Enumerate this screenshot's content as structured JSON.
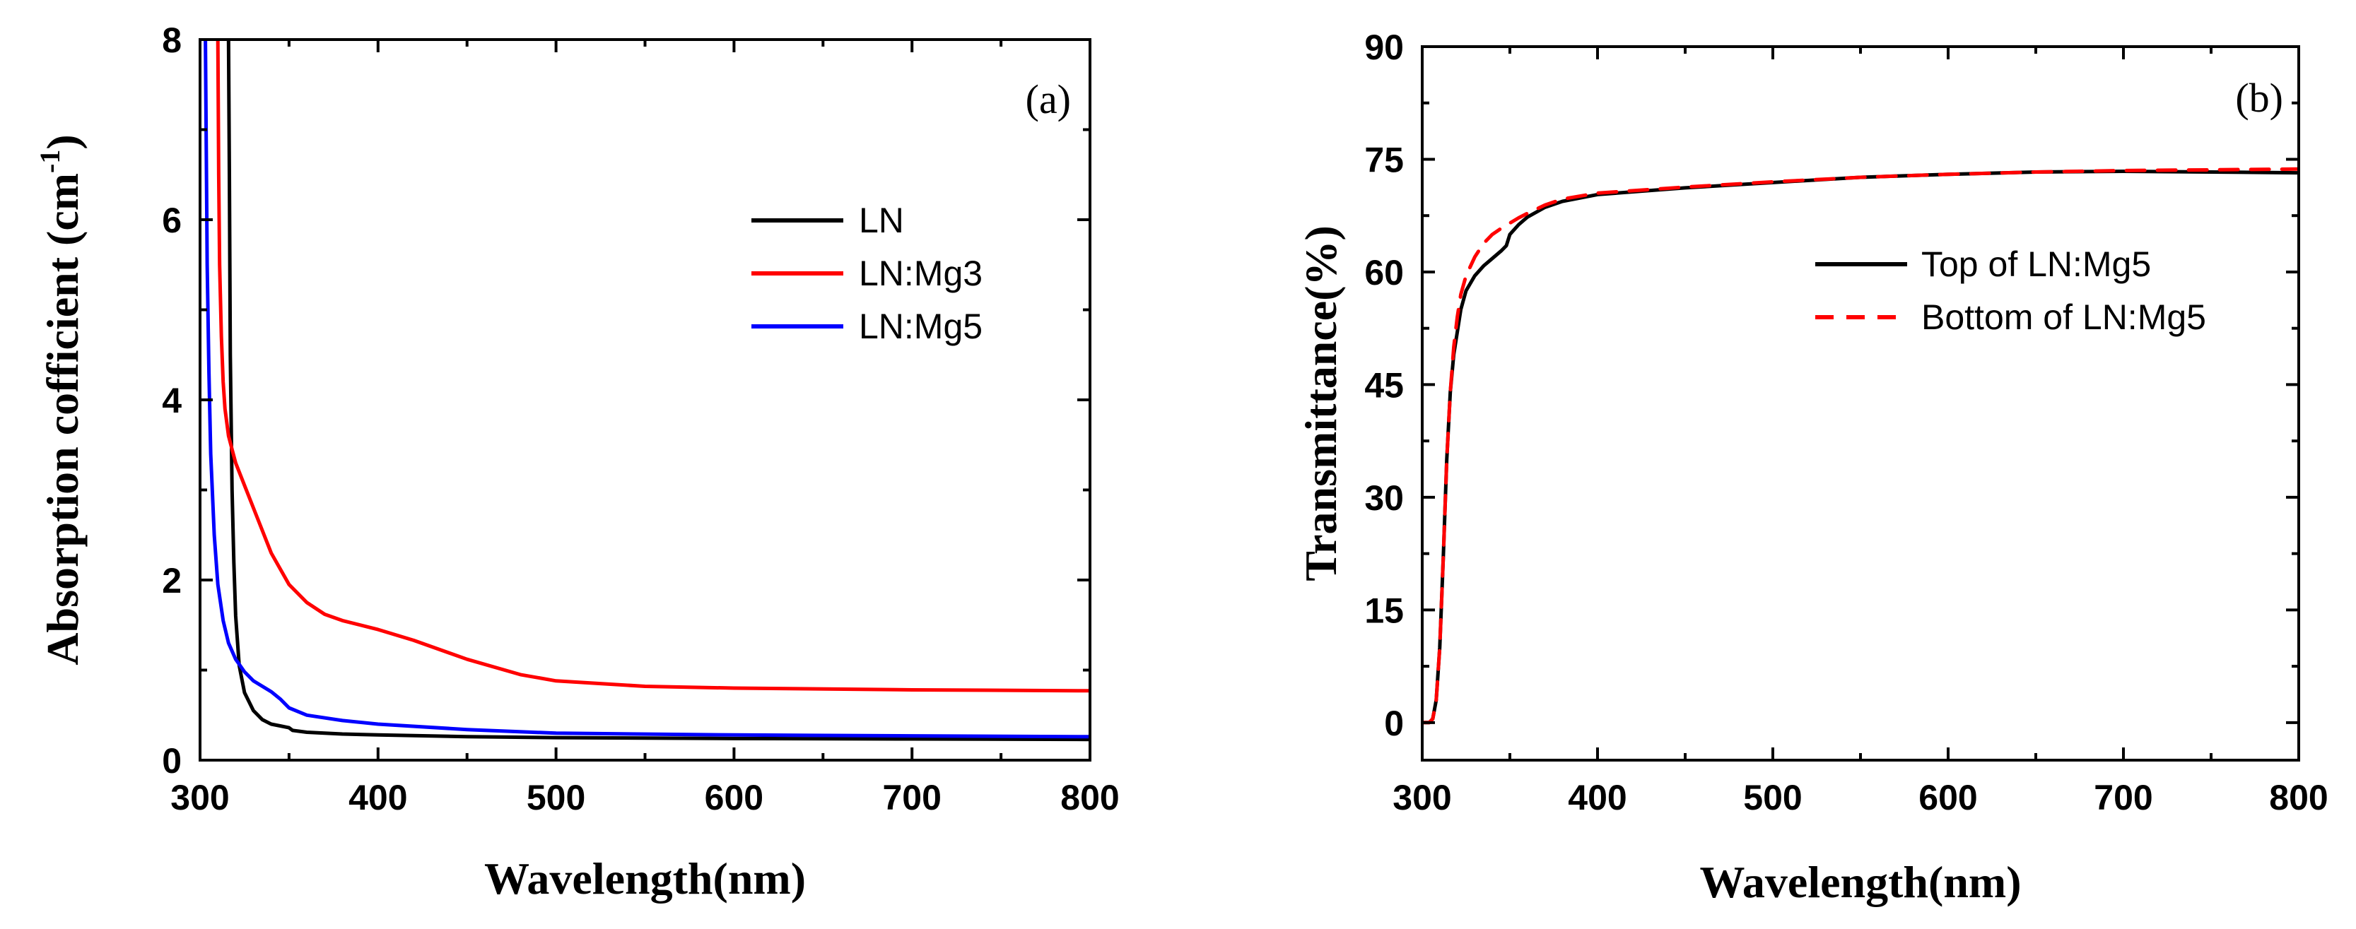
{
  "chart_data": [
    {
      "type": "line",
      "panel_label": "(a)",
      "xlabel": "Wavelength(nm)",
      "ylabel": "Absorption cofficient (cm",
      "ylabel_superscript": "-1",
      "ylabel_close": ")",
      "xlim": [
        300,
        800
      ],
      "ylim": [
        0,
        8
      ],
      "xticks": [
        300,
        400,
        500,
        600,
        700,
        800
      ],
      "yticks": [
        0,
        2,
        4,
        6,
        8
      ],
      "xtick_labels": [
        "300",
        "400",
        "500",
        "600",
        "700",
        "800"
      ],
      "ytick_labels": [
        "0",
        "2",
        "4",
        "6",
        "8"
      ],
      "legend_position": "center-right",
      "series": [
        {
          "name": "LN",
          "color": "#000000",
          "dash": "solid",
          "x": [
            316,
            316.5,
            317,
            318,
            319,
            320,
            322,
            325,
            330,
            335,
            340,
            345,
            350,
            352,
            360,
            380,
            400,
            450,
            500,
            600,
            700,
            800
          ],
          "y": [
            8,
            6.5,
            4.5,
            3.0,
            2.2,
            1.6,
            1.05,
            0.75,
            0.55,
            0.45,
            0.4,
            0.38,
            0.36,
            0.33,
            0.31,
            0.29,
            0.28,
            0.26,
            0.25,
            0.24,
            0.235,
            0.23
          ]
        },
        {
          "name": "LN:Mg3",
          "color": "#ff0000",
          "dash": "solid",
          "x": [
            310,
            310.5,
            311,
            312,
            313,
            314,
            316,
            318,
            320,
            325,
            330,
            340,
            350,
            360,
            370,
            380,
            400,
            420,
            450,
            480,
            500,
            550,
            600,
            700,
            800
          ],
          "y": [
            8,
            6.5,
            5.5,
            4.7,
            4.2,
            3.9,
            3.6,
            3.45,
            3.3,
            3.05,
            2.8,
            2.3,
            1.95,
            1.75,
            1.62,
            1.55,
            1.45,
            1.33,
            1.12,
            0.95,
            0.88,
            0.82,
            0.8,
            0.78,
            0.77
          ]
        },
        {
          "name": "LN:Mg5",
          "color": "#0000ff",
          "dash": "solid",
          "x": [
            303,
            303.5,
            304,
            305,
            306,
            308,
            310,
            313,
            316,
            320,
            325,
            330,
            340,
            345,
            350,
            360,
            380,
            400,
            450,
            500,
            600,
            700,
            800
          ],
          "y": [
            8,
            6.8,
            5.5,
            4.3,
            3.4,
            2.5,
            1.95,
            1.55,
            1.3,
            1.12,
            0.98,
            0.88,
            0.76,
            0.68,
            0.58,
            0.5,
            0.44,
            0.4,
            0.34,
            0.3,
            0.28,
            0.27,
            0.26
          ]
        }
      ]
    },
    {
      "type": "line",
      "panel_label": "(b)",
      "xlabel": "Wavelength(nm)",
      "ylabel": "Transmittance(%)",
      "xlim": [
        300,
        800
      ],
      "ylim": [
        -5,
        90
      ],
      "xticks": [
        300,
        400,
        500,
        600,
        700,
        800
      ],
      "yticks": [
        0,
        15,
        30,
        45,
        60,
        75,
        90
      ],
      "xtick_labels": [
        "300",
        "400",
        "500",
        "600",
        "700",
        "800"
      ],
      "ytick_labels": [
        "0",
        "15",
        "30",
        "45",
        "60",
        "75",
        "90"
      ],
      "legend_position": "center-right",
      "series": [
        {
          "name": "Top of LN:Mg5",
          "color": "#000000",
          "dash": "solid",
          "x": [
            300,
            304,
            306,
            308,
            310,
            312,
            314,
            316,
            318,
            320,
            322,
            325,
            330,
            335,
            340,
            345,
            348,
            350,
            355,
            360,
            370,
            380,
            400,
            450,
            500,
            550,
            600,
            650,
            700,
            750,
            800
          ],
          "y": [
            0,
            0,
            0.5,
            3,
            10,
            22,
            35,
            44,
            49,
            52,
            55,
            57.5,
            59.5,
            60.8,
            61.8,
            62.8,
            63.5,
            65,
            66.3,
            67.3,
            68.6,
            69.4,
            70.3,
            71.2,
            71.9,
            72.6,
            73.0,
            73.3,
            73.4,
            73.3,
            73.2
          ]
        },
        {
          "name": "Bottom of LN:Mg5",
          "color": "#ff0000",
          "dash": "dashed",
          "x": [
            300,
            304,
            306,
            308,
            310,
            312,
            314,
            316,
            318,
            320,
            322,
            325,
            330,
            335,
            340,
            345,
            350,
            355,
            360,
            370,
            380,
            400,
            450,
            500,
            550,
            600,
            650,
            700,
            750,
            800
          ],
          "y": [
            0,
            0,
            0.5,
            3,
            10,
            22,
            35,
            44,
            50,
            54,
            57,
            59.5,
            62,
            63.8,
            65,
            65.8,
            66.5,
            67.2,
            67.8,
            68.9,
            69.7,
            70.5,
            71.3,
            72.0,
            72.6,
            73.0,
            73.3,
            73.5,
            73.6,
            73.7
          ]
        }
      ]
    }
  ]
}
